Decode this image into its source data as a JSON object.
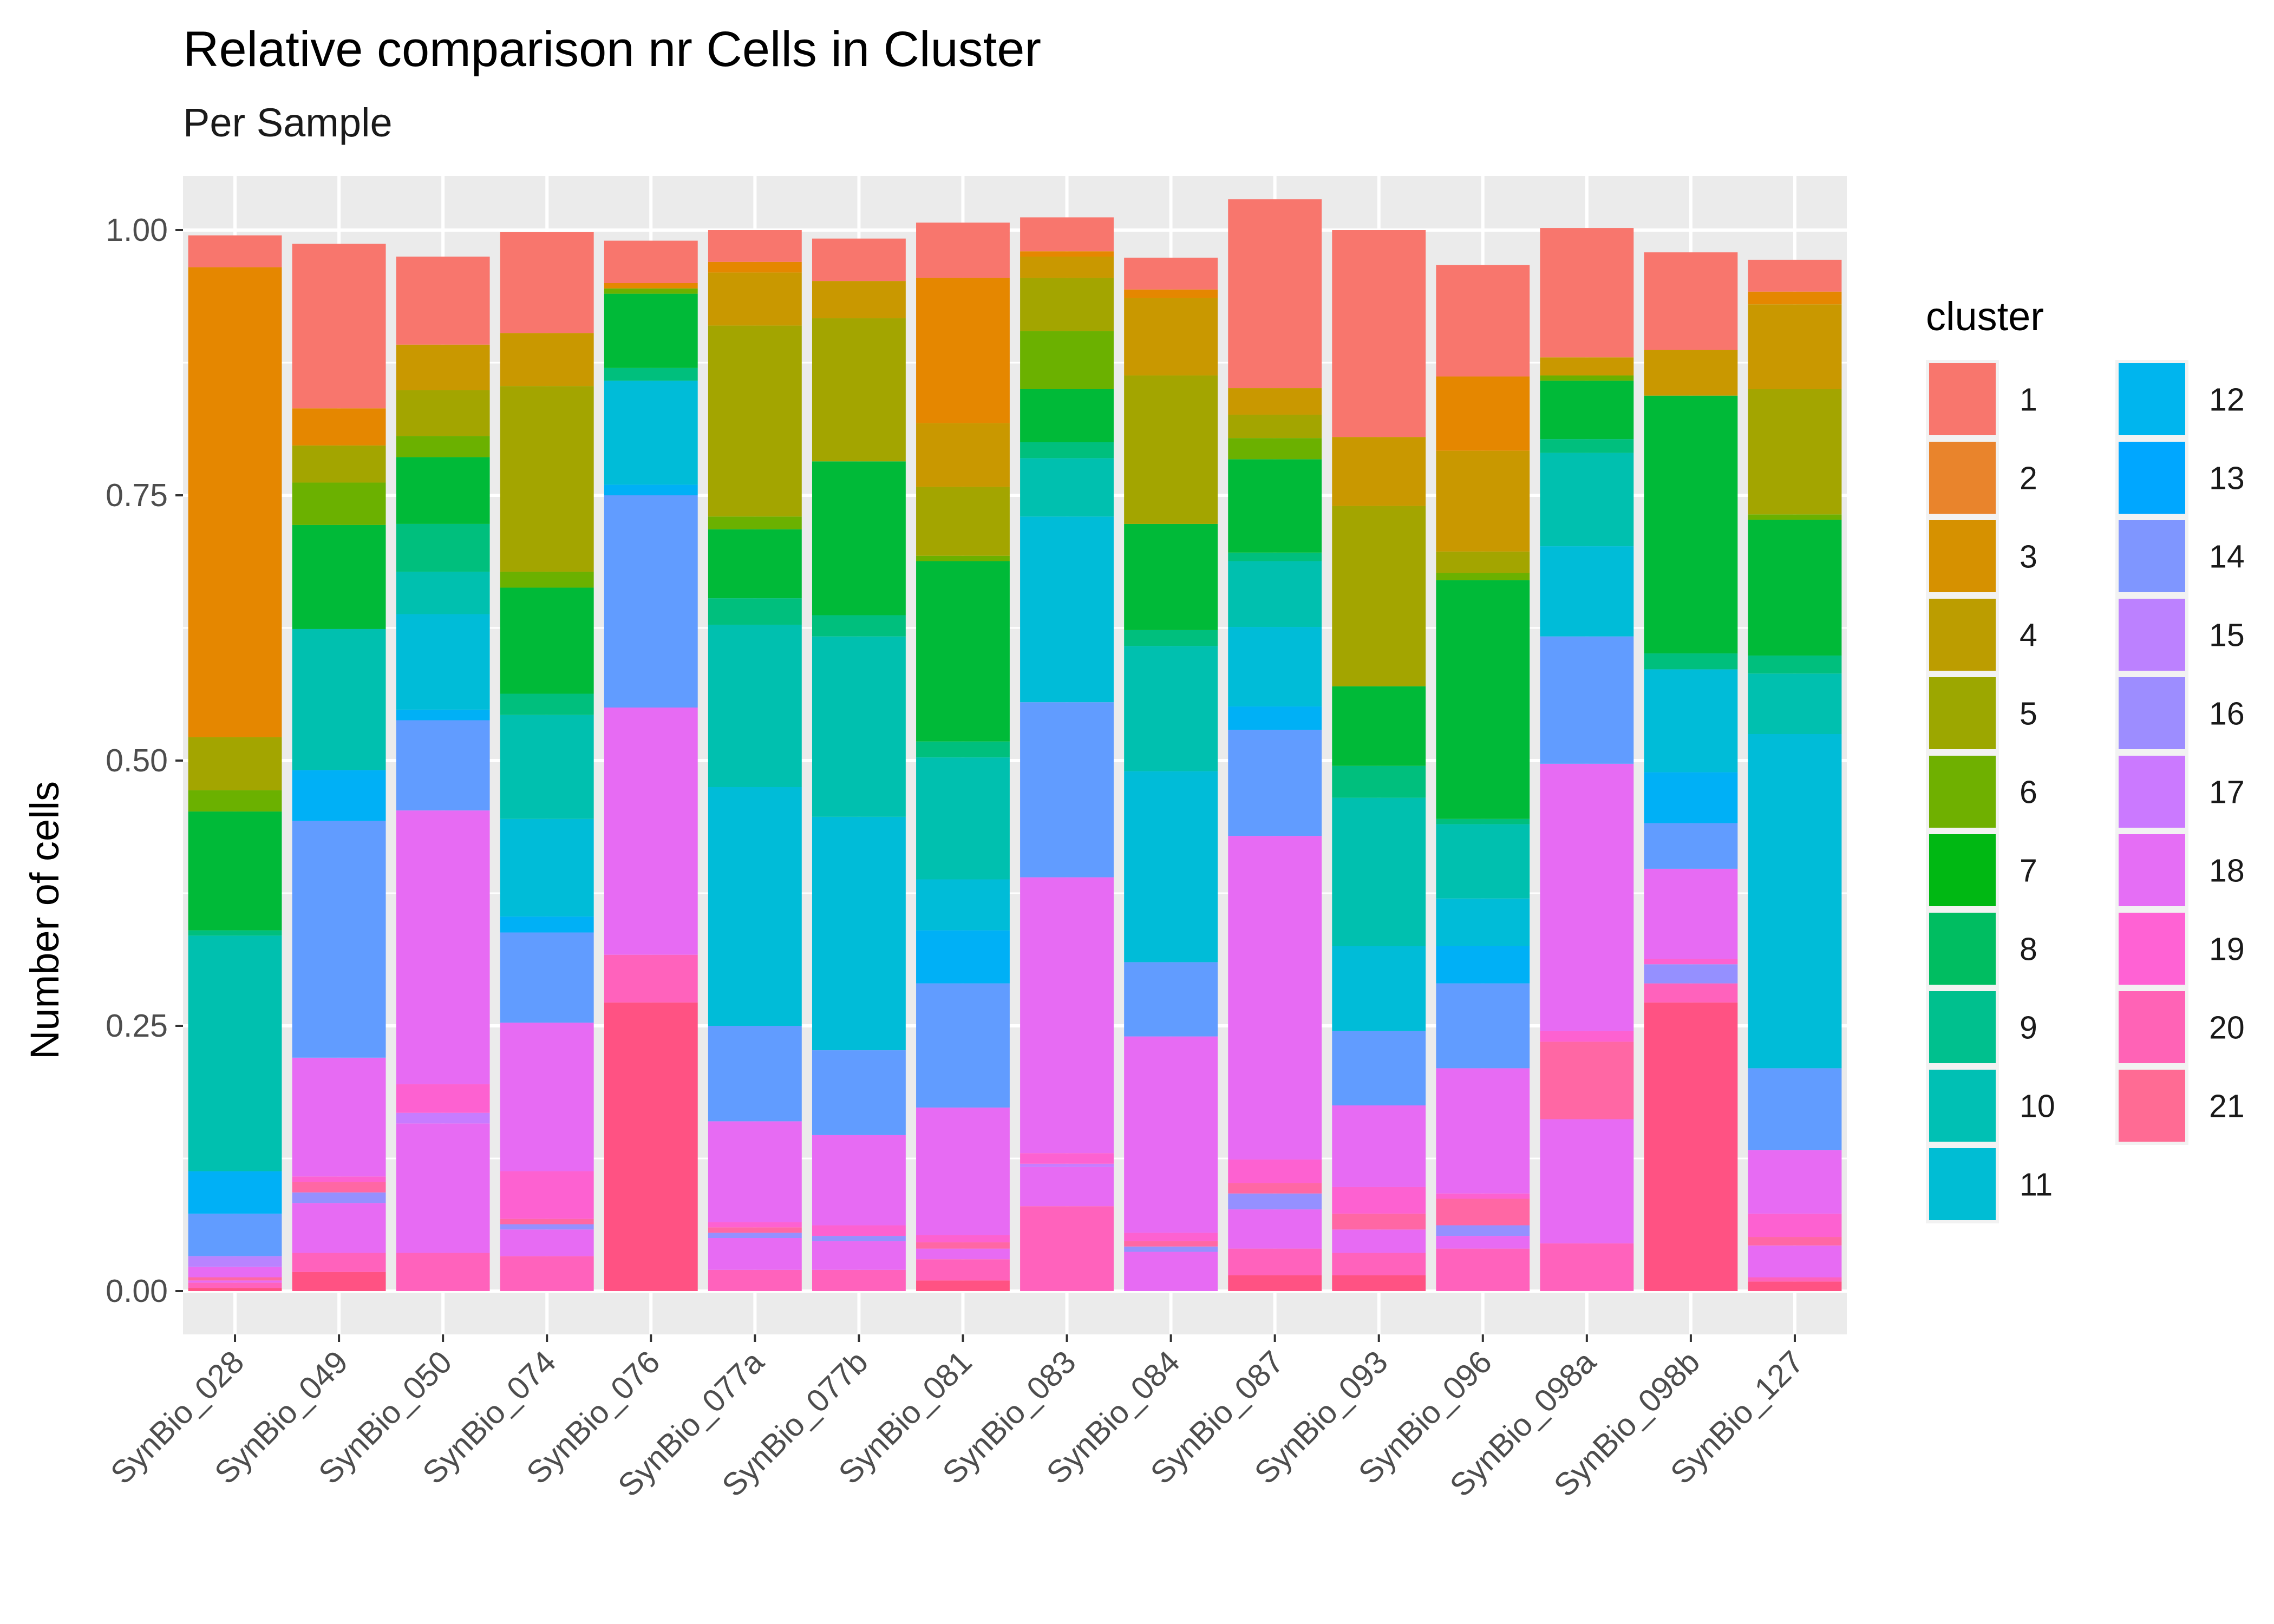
{
  "chart_data": {
    "type": "bar",
    "stacked": true,
    "title": "Relative comparison nr Cells in Cluster",
    "subtitle": "Per Sample",
    "xlabel": "",
    "ylabel": "Number of cells",
    "ylim": [
      0,
      1
    ],
    "yticks": [
      "0.00",
      "0.25",
      "0.50",
      "0.75",
      "1.00"
    ],
    "legend": {
      "title": "cluster",
      "position": "right"
    },
    "categories": [
      "SynBio_028",
      "SynBio_049",
      "SynBio_050",
      "SynBio_074",
      "SynBio_076",
      "SynBio_077a",
      "SynBio_077b",
      "SynBio_081",
      "SynBio_083",
      "SynBio_084",
      "SynBio_087",
      "SynBio_093",
      "SynBio_096",
      "SynBio_098a",
      "SynBio_098b",
      "SynBio_127"
    ],
    "series": [
      {
        "name": "1",
        "color": "#F8766D",
        "values": [
          0.03,
          0.155,
          0.083,
          0.095,
          0.04,
          0.03,
          0.04,
          0.052,
          0.032,
          0.03,
          0.178,
          0.195,
          0.105,
          0.122,
          0.092,
          0.03
        ]
      },
      {
        "name": "2",
        "color": "#E58700",
        "values": [
          0.443,
          0.035,
          0.0,
          0.0,
          0.005,
          0.01,
          0.0,
          0.137,
          0.005,
          0.008,
          0.0,
          0.0,
          0.07,
          0.0,
          0.0,
          0.012
        ]
      },
      {
        "name": "3",
        "color": "#C99800",
        "values": [
          0.0,
          0.0,
          0.043,
          0.05,
          0.0,
          0.05,
          0.035,
          0.06,
          0.02,
          0.073,
          0.025,
          0.065,
          0.095,
          0.017,
          0.043,
          0.08
        ]
      },
      {
        "name": "4",
        "color": "#A3A500",
        "values": [
          0.05,
          0.035,
          0.043,
          0.175,
          0.0,
          0.18,
          0.135,
          0.065,
          0.05,
          0.14,
          0.022,
          0.17,
          0.02,
          0.0,
          0.0,
          0.118
        ]
      },
      {
        "name": "5",
        "color": "#6BB100",
        "values": [
          0.02,
          0.04,
          0.02,
          0.015,
          0.005,
          0.012,
          0.0,
          0.005,
          0.055,
          0.0,
          0.02,
          0.0,
          0.007,
          0.005,
          0.0,
          0.005
        ]
      },
      {
        "name": "6",
        "color": "#00BA38",
        "values": [
          0.112,
          0.098,
          0.063,
          0.1,
          0.07,
          0.065,
          0.145,
          0.17,
          0.05,
          0.1,
          0.088,
          0.075,
          0.225,
          0.055,
          0.243,
          0.128
        ]
      },
      {
        "name": "7",
        "color": "#00BF7D",
        "values": [
          0.005,
          0.0,
          0.045,
          0.02,
          0.012,
          0.025,
          0.02,
          0.015,
          0.015,
          0.015,
          0.008,
          0.03,
          0.005,
          0.013,
          0.015,
          0.017
        ]
      },
      {
        "name": "8",
        "color": "#00C0AF",
        "values": [
          0.222,
          0.133,
          0.04,
          0.098,
          0.0,
          0.153,
          0.17,
          0.115,
          0.055,
          0.118,
          0.062,
          0.14,
          0.07,
          0.088,
          0.0,
          0.057
        ]
      },
      {
        "name": "9",
        "color": "#00BCD8",
        "values": [
          0.0,
          0.0,
          0.09,
          0.092,
          0.098,
          0.225,
          0.22,
          0.048,
          0.175,
          0.18,
          0.075,
          0.08,
          0.045,
          0.085,
          0.097,
          0.315
        ]
      },
      {
        "name": "10",
        "color": "#00B0F6",
        "values": [
          0.04,
          0.048,
          0.01,
          0.015,
          0.01,
          0.0,
          0.0,
          0.05,
          0.0,
          0.0,
          0.022,
          0.0,
          0.035,
          0.0,
          0.048,
          0.0
        ]
      },
      {
        "name": "11",
        "color": "#619CFF",
        "values": [
          0.04,
          0.223,
          0.085,
          0.085,
          0.2,
          0.09,
          0.08,
          0.117,
          0.165,
          0.07,
          0.1,
          0.07,
          0.08,
          0.12,
          0.043,
          0.077
        ]
      },
      {
        "name": "12",
        "color": "#B983FF",
        "values": [
          0.01,
          0.0,
          0.0,
          0.0,
          0.0,
          0.0,
          0.0,
          0.0,
          0.0,
          0.0,
          0.0,
          0.0,
          0.0,
          0.0,
          0.0,
          0.0
        ]
      },
      {
        "name": "13",
        "color": "#E76BF3",
        "values": [
          0.01,
          0.112,
          0.258,
          0.14,
          0.233,
          0.095,
          0.085,
          0.12,
          0.26,
          0.185,
          0.305,
          0.077,
          0.118,
          0.252,
          0.085,
          0.06
        ]
      },
      {
        "name": "14",
        "color": "#FD61D1",
        "values": [
          0.0,
          0.005,
          0.027,
          0.045,
          0.0,
          0.005,
          0.01,
          0.007,
          0.01,
          0.008,
          0.022,
          0.025,
          0.005,
          0.01,
          0.005,
          0.022
        ]
      },
      {
        "name": "15",
        "color": "#FF67A4",
        "values": [
          0.003,
          0.01,
          0.0,
          0.005,
          0.0,
          0.005,
          0.0,
          0.006,
          0.0,
          0.005,
          0.01,
          0.015,
          0.025,
          0.073,
          0.0,
          0.008
        ]
      },
      {
        "name": "16",
        "color": "#9590FF",
        "values": [
          0.0,
          0.01,
          0.0,
          0.005,
          0.0,
          0.005,
          0.005,
          0.0,
          0.0,
          0.005,
          0.015,
          0.0,
          0.01,
          0.0,
          0.018,
          0.0
        ]
      },
      {
        "name": "17",
        "color": "#C77CFF",
        "values": [
          0.0,
          0.0,
          0.01,
          0.0,
          0.0,
          0.0,
          0.0,
          0.0,
          0.003,
          0.0,
          0.0,
          0.0,
          0.0,
          0.0,
          0.0,
          0.0
        ]
      },
      {
        "name": "18",
        "color": "#E76BF3",
        "values": [
          0.002,
          0.047,
          0.122,
          0.025,
          0.0,
          0.03,
          0.027,
          0.01,
          0.037,
          0.037,
          0.037,
          0.022,
          0.012,
          0.117,
          0.0,
          0.03
        ]
      },
      {
        "name": "19",
        "color": "#FF62BC",
        "values": [
          0.005,
          0.018,
          0.036,
          0.033,
          0.045,
          0.02,
          0.02,
          0.02,
          0.08,
          0.0,
          0.025,
          0.021,
          0.04,
          0.045,
          0.018,
          0.004
        ]
      },
      {
        "name": "20",
        "color": "#FF6C91",
        "values": [
          0.0,
          0.0,
          0.0,
          0.0,
          0.0,
          0.0,
          0.0,
          0.0,
          0.0,
          0.0,
          0.0,
          0.0,
          0.0,
          0.0,
          0.0,
          0.0
        ]
      },
      {
        "name": "21",
        "color": "#FF5283",
        "values": [
          0.003,
          0.018,
          0.0,
          0.0,
          0.272,
          0.0,
          0.0,
          0.01,
          0.0,
          0.0,
          0.015,
          0.015,
          0.0,
          0.0,
          0.272,
          0.009
        ]
      }
    ],
    "legend_items": [
      {
        "name": "1",
        "color": "#F8766D"
      },
      {
        "name": "2",
        "color": "#E9842C"
      },
      {
        "name": "3",
        "color": "#D69100"
      },
      {
        "name": "4",
        "color": "#BC9D00"
      },
      {
        "name": "5",
        "color": "#9CA700"
      },
      {
        "name": "6",
        "color": "#6FB000"
      },
      {
        "name": "7",
        "color": "#00B813"
      },
      {
        "name": "8",
        "color": "#00BD61"
      },
      {
        "name": "9",
        "color": "#00C08E"
      },
      {
        "name": "10",
        "color": "#00C0B4"
      },
      {
        "name": "11",
        "color": "#00BDD4"
      },
      {
        "name": "12",
        "color": "#00B5EE"
      },
      {
        "name": "13",
        "color": "#00A7FF"
      },
      {
        "name": "14",
        "color": "#7F96FF"
      },
      {
        "name": "15",
        "color": "#BC81FF"
      },
      {
        "name": "16",
        "color": "#9D8DFF"
      },
      {
        "name": "17",
        "color": "#CB79FF"
      },
      {
        "name": "18",
        "color": "#E56EF5"
      },
      {
        "name": "19",
        "color": "#FF62D4"
      },
      {
        "name": "20",
        "color": "#FF63B6"
      },
      {
        "name": "21",
        "color": "#FF6B94"
      }
    ]
  }
}
